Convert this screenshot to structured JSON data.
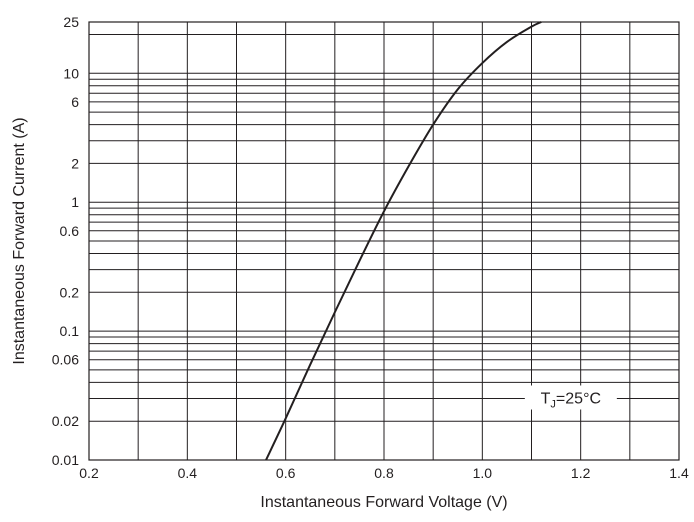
{
  "chart_data": {
    "type": "line",
    "xlabel": "Instantaneous Forward Voltage (V)",
    "ylabel": "Instantaneous Forward Current (A)",
    "xlim": [
      0.2,
      1.4
    ],
    "ylim": [
      0.01,
      25
    ],
    "y_scale": "log",
    "grid": true,
    "x_ticks": [
      0.2,
      0.4,
      0.6,
      0.8,
      1.0,
      1.2,
      1.4
    ],
    "x_tick_labels": [
      "0.2",
      "0.4",
      "0.6",
      "0.8",
      "1.0",
      "1.2",
      "1.4"
    ],
    "y_ticks": [
      0.01,
      0.02,
      0.06,
      0.1,
      0.2,
      0.6,
      1,
      2,
      6,
      10,
      25
    ],
    "y_tick_labels": [
      "0.01",
      "0.02",
      "0.06",
      "0.1",
      "0.2",
      "0.6",
      "1",
      "2",
      "6",
      "10",
      "25"
    ],
    "series": [
      {
        "x": [
          0.56,
          0.6,
          0.65,
          0.7,
          0.75,
          0.8,
          0.85,
          0.9,
          0.95,
          1.0,
          1.05,
          1.1,
          1.12
        ],
        "y": [
          0.01,
          0.021,
          0.055,
          0.14,
          0.35,
          0.85,
          1.9,
          4.0,
          7.5,
          12,
          17.5,
          23,
          25
        ]
      }
    ],
    "annotations": [
      {
        "text": "T",
        "sub": "J",
        "rest": "=25°C",
        "x": 1.18,
        "y": 0.03
      }
    ]
  }
}
